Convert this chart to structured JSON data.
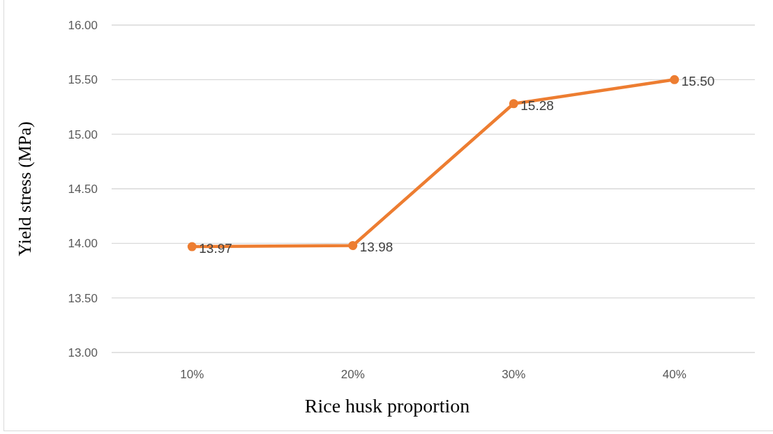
{
  "chart_data": {
    "type": "line",
    "xlabel": "Rice husk proportion",
    "ylabel": "Yield stress (MPa)",
    "categories": [
      "10%",
      "20%",
      "30%",
      "40%"
    ],
    "series": [
      {
        "color": "#ed7d31",
        "values": [
          13.97,
          13.98,
          15.28,
          15.5
        ],
        "value_labels": [
          "13.97",
          "13.98",
          "15.28",
          "15.50"
        ]
      }
    ],
    "ylim": [
      13,
      16
    ],
    "yticks": [
      {
        "value": 13,
        "label": "13.00"
      },
      {
        "value": 13.5,
        "label": "13.50"
      },
      {
        "value": 14,
        "label": "14.00"
      },
      {
        "value": 14.5,
        "label": "14.50"
      },
      {
        "value": 15,
        "label": "15.00"
      },
      {
        "value": 15.5,
        "label": "15.50"
      },
      {
        "value": 16,
        "label": "16.00"
      }
    ],
    "grid": "y",
    "marker": "circle",
    "line_style": "solid"
  }
}
